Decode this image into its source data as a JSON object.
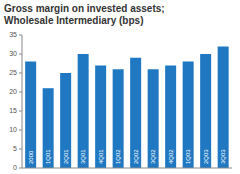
{
  "chart_data": {
    "type": "bar",
    "title": "Gross margin on invested assets; Wholesale Intermediary (bps)",
    "categories": [
      "2000",
      "1Q01",
      "2Q01",
      "3Q01",
      "4Q01",
      "1Q02",
      "2Q02",
      "3Q02",
      "4Q02",
      "1Q03",
      "2Q03",
      "3Q03"
    ],
    "values": [
      28,
      21,
      25,
      30,
      27,
      26,
      29,
      26,
      27,
      28,
      30,
      32
    ],
    "color": "#1f78c1",
    "ylim": [
      0,
      35
    ],
    "yticks": [
      0,
      5,
      10,
      15,
      20,
      25,
      30,
      35
    ],
    "grid": false
  }
}
